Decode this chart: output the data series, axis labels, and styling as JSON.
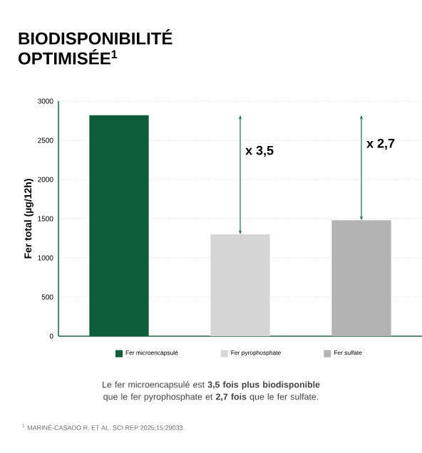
{
  "chart_data": {
    "type": "bar",
    "title": "BIODISPONIBILITÉ OPTIMISÉE$^{1}$",
    "ylabel": "Fer total (µg/12h)",
    "categories": [
      null,
      null,
      null
    ],
    "series": [
      {
        "name": "Fer microencapsulé",
        "color": "#0d5c3a",
        "values": [
          2820,
          null,
          null
        ]
      },
      {
        "name": "Fer pyrophosphate",
        "color": "#d6d6d6",
        "values": [
          null,
          1300,
          null
        ]
      },
      {
        "name": "Fer sulfate",
        "color": "#b3b3b3",
        "values": [
          null,
          null,
          1480
        ]
      }
    ],
    "ylim": [
      0,
      3000
    ],
    "yticks": [
      0,
      500,
      1000,
      1500,
      2000,
      2500,
      3000
    ],
    "grid": "y",
    "legend": "bottom",
    "annotations": [
      "x 3,5",
      "x 2,7",
      "Le fer microencapsulé est **3,5 fois plus biodisponible** que le fer pyrophosphate et **2,7 fois** que le fer sulfate.",
      "$^{1}$ MARINÉ-CASADO R, ET AL. SCI REP 2025;15:29033."
    ]
  }
}
